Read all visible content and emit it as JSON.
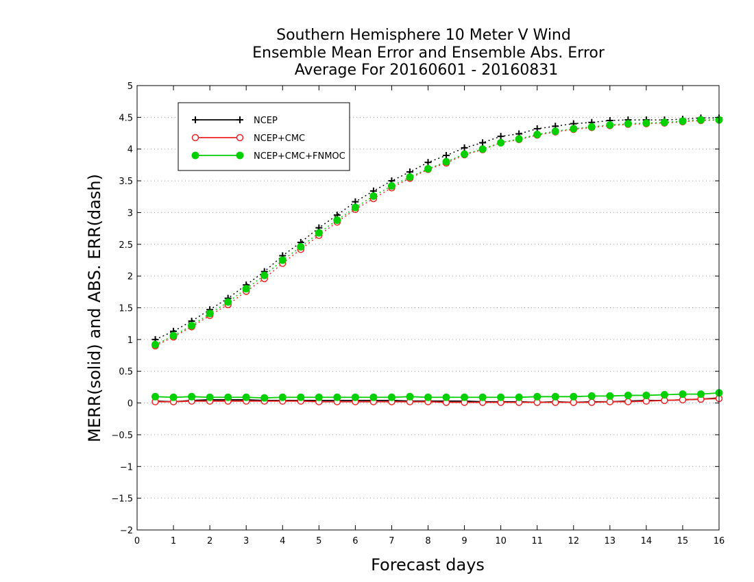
{
  "chart_data": {
    "type": "line",
    "title_lines": [
      "Southern Hemisphere 10 Meter V Wind",
      "Ensemble Mean Error and Ensemble Abs. Error",
      "Average For 20160601 - 20160831"
    ],
    "xlabel": "Forecast days",
    "ylabel": "MERR(solid) and ABS. ERR(dash)",
    "xlim": [
      0,
      16
    ],
    "ylim": [
      -2,
      5
    ],
    "x_ticks": [
      "0",
      "1",
      "2",
      "3",
      "4",
      "5",
      "6",
      "7",
      "8",
      "9",
      "10",
      "11",
      "12",
      "13",
      "14",
      "15",
      "16"
    ],
    "y_ticks": [
      "−2",
      "−1.5",
      "−1",
      "−0.5",
      "0",
      "0.5",
      "1",
      "1.5",
      "2",
      "2.5",
      "3",
      "3.5",
      "4",
      "4.5",
      "5"
    ],
    "grid": "horizontal dotted",
    "legend_placement": "top-left",
    "x": [
      0.5,
      1,
      1.5,
      2,
      2.5,
      3,
      3.5,
      4,
      4.5,
      5,
      5.5,
      6,
      6.5,
      7,
      7.5,
      8,
      8.5,
      9,
      9.5,
      10,
      10.5,
      11,
      11.5,
      12,
      12.5,
      13,
      13.5,
      14,
      14.5,
      15,
      15.5,
      16
    ],
    "series": [
      {
        "name": "NCEP",
        "color": "#000000",
        "marker": "plus",
        "abs_err": [
          1.0,
          1.13,
          1.29,
          1.47,
          1.65,
          1.86,
          2.07,
          2.32,
          2.53,
          2.76,
          2.96,
          3.17,
          3.34,
          3.5,
          3.64,
          3.79,
          3.9,
          4.02,
          4.1,
          4.2,
          4.24,
          4.32,
          4.36,
          4.4,
          4.42,
          4.45,
          4.46,
          4.46,
          4.46,
          4.47,
          4.49,
          4.49
        ],
        "mean_err": [
          0.03,
          0.02,
          0.04,
          0.05,
          0.05,
          0.05,
          0.04,
          0.04,
          0.04,
          0.04,
          0.04,
          0.04,
          0.04,
          0.04,
          0.03,
          0.03,
          0.03,
          0.03,
          0.02,
          0.02,
          0.02,
          0.01,
          0.02,
          0.01,
          0.02,
          0.02,
          0.03,
          0.04,
          0.04,
          0.05,
          0.06,
          0.08
        ]
      },
      {
        "name": "NCEP+CMC",
        "color": "#ee2222",
        "marker": "open-circle",
        "abs_err": [
          0.9,
          1.04,
          1.2,
          1.38,
          1.55,
          1.76,
          1.96,
          2.2,
          2.42,
          2.64,
          2.85,
          3.05,
          3.22,
          3.39,
          3.54,
          3.68,
          3.78,
          3.91,
          3.99,
          4.1,
          4.15,
          4.22,
          4.27,
          4.31,
          4.34,
          4.37,
          4.39,
          4.4,
          4.41,
          4.43,
          4.45,
          4.46
        ],
        "mean_err": [
          0.02,
          0.02,
          0.03,
          0.03,
          0.03,
          0.03,
          0.03,
          0.03,
          0.03,
          0.02,
          0.02,
          0.02,
          0.02,
          0.02,
          0.02,
          0.02,
          0.01,
          0.01,
          0.01,
          0.01,
          0.01,
          0.01,
          0.01,
          0.01,
          0.01,
          0.02,
          0.02,
          0.03,
          0.04,
          0.05,
          0.06,
          0.07
        ]
      },
      {
        "name": "NCEP+CMC+FNMOC",
        "color": "#00d000",
        "marker": "filled-circle",
        "abs_err": [
          0.92,
          1.06,
          1.22,
          1.41,
          1.59,
          1.8,
          2.01,
          2.25,
          2.46,
          2.68,
          2.88,
          3.08,
          3.26,
          3.42,
          3.56,
          3.69,
          3.8,
          3.92,
          4.0,
          4.1,
          4.16,
          4.23,
          4.28,
          4.32,
          4.35,
          4.38,
          4.4,
          4.41,
          4.42,
          4.44,
          4.46,
          4.46
        ],
        "mean_err": [
          0.1,
          0.09,
          0.1,
          0.09,
          0.09,
          0.09,
          0.08,
          0.09,
          0.09,
          0.09,
          0.09,
          0.09,
          0.09,
          0.09,
          0.1,
          0.09,
          0.09,
          0.09,
          0.09,
          0.09,
          0.09,
          0.1,
          0.1,
          0.1,
          0.11,
          0.11,
          0.12,
          0.12,
          0.13,
          0.14,
          0.14,
          0.16
        ]
      }
    ]
  }
}
